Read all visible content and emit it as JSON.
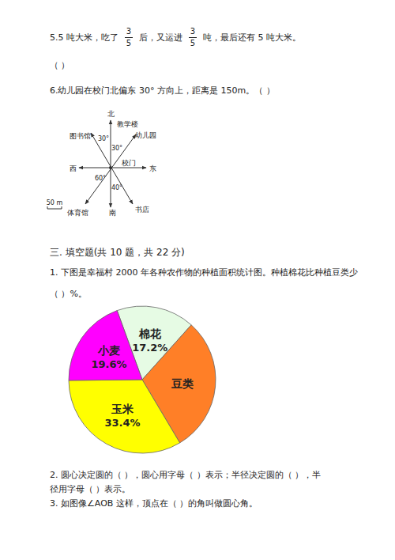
{
  "document": {
    "judgment": [
      {
        "parts": [
          {
            "text": "5.5 吨大米，吃了"
          },
          {
            "numerator": "3",
            "denominator": "5"
          },
          {
            "text": "后，又运进"
          },
          {
            "numerator": "3",
            "denominator": "5"
          },
          {
            "text": "吨，最后还有 5 吨大米。"
          }
        ],
        "blank": "（    ）"
      },
      {
        "text": "6.幼儿园在校门北偏东 30° 方向上，距离是 150m。（    ）"
      }
    ],
    "compass": {
      "north": "北",
      "south": "南",
      "east": "东",
      "west": "西",
      "center": "校门",
      "places": [
        {
          "label": "教学楼"
        },
        {
          "label": "图书馆",
          "angle_label": "30°"
        },
        {
          "label": "幼儿园",
          "angle_label": "30°"
        },
        {
          "label": "体育馆",
          "angle_label": "60°"
        },
        {
          "label": "书店",
          "angle_label": "40°"
        }
      ],
      "scale_label": "50 m"
    },
    "section_title": "三. 填空题(共 10 题，共 22 分)",
    "q1": {
      "lines": [
        "1. 下图是幸福村 2000 年各种农作物的种植面积统计图。种植棉花比种植豆类少",
        "（    ）%。"
      ]
    },
    "q2": {
      "lines": [
        "2. 圆心决定圆的（    ），圆心用字母（    ）表示；半径决定圆的（    ），半",
        "径用字母（    ）表示。"
      ]
    },
    "q3": {
      "lines": [
        "3. 如图像∠AOB 这样，顶点在（    ）的角叫做圆心角。"
      ]
    }
  },
  "chart_data": {
    "type": "pie",
    "categories": [
      "棉花",
      "豆类",
      "玉米",
      "小麦"
    ],
    "values": [
      17.2,
      29.8,
      33.4,
      19.6
    ],
    "value_labels": [
      "17.2%",
      null,
      "33.4%",
      "19.6%"
    ],
    "colors": [
      "#e6fbe4",
      "#ff7f27",
      "#ffff00",
      "#ff00ff"
    ],
    "data_labels": true
  }
}
